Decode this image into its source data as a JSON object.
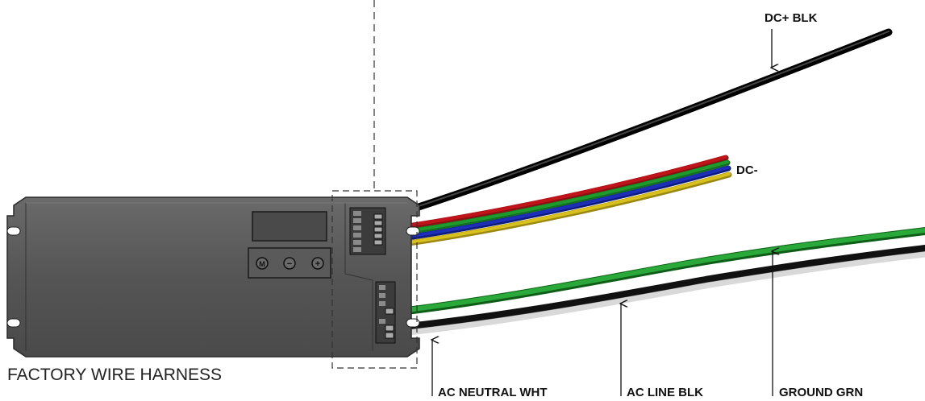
{
  "labels": {
    "dc_plus": "DC+ BLK",
    "dc_minus": "DC-",
    "ac_neutral": "AC NEUTRAL WHT",
    "ac_line": "AC LINE BLK",
    "ground": "GROUND GRN",
    "harness": "FACTORY WIRE HARNESS"
  },
  "buttons": {
    "mode": "M",
    "minus": "−",
    "plus": "+"
  },
  "colors": {
    "housing": "#555555",
    "dc_plus_wire": "#111111",
    "red_wire": "#c0141a",
    "green_wire": "#1f9a2c",
    "blue_wire": "#1d2fb8",
    "yellow_wire": "#d8c11c",
    "ac_line_wire": "#111111",
    "ac_neutral_wire": "#d9d9d9",
    "ground_wire": "#2aa83a"
  }
}
